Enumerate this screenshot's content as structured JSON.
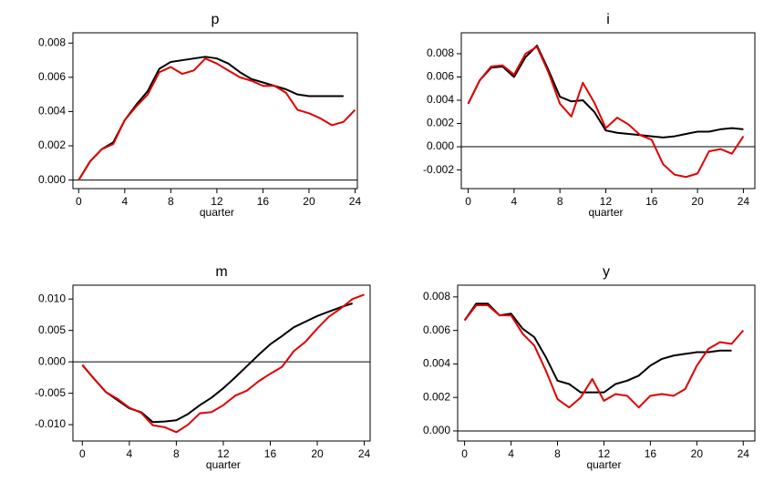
{
  "chart_data": [
    {
      "type": "line",
      "title": "p",
      "x_label": "quarter",
      "x": [
        0,
        1,
        2,
        3,
        4,
        5,
        6,
        7,
        8,
        9,
        10,
        11,
        12,
        13,
        14,
        15,
        16,
        17,
        18,
        19,
        20,
        21,
        22,
        23,
        24
      ],
      "series": [
        {
          "color": "#000000",
          "values": [
            0,
            0.0011,
            0.0018,
            0.0022,
            0.0035,
            0.0044,
            0.0052,
            0.0065,
            0.0069,
            0.007,
            0.0071,
            0.0072,
            0.0071,
            0.0068,
            0.0063,
            0.0059,
            0.0057,
            0.0055,
            0.0053,
            0.005,
            0.0049,
            0.0049,
            0.0049,
            0.0049,
            null
          ]
        },
        {
          "color": "#e00000",
          "values": [
            0,
            0.0011,
            0.0018,
            0.0021,
            0.0035,
            0.0043,
            0.005,
            0.0063,
            0.0066,
            0.0062,
            0.0064,
            0.0071,
            0.0068,
            0.0064,
            0.006,
            0.0058,
            0.0055,
            0.0055,
            0.0051,
            0.0041,
            0.0039,
            0.0036,
            0.0032,
            0.0034,
            0.0041
          ]
        }
      ],
      "xlim": [
        -0.5,
        24.2
      ],
      "xticks": [
        0,
        4,
        8,
        12,
        16,
        20,
        24
      ],
      "ylim": [
        -0.0005,
        0.0086
      ],
      "yticks": [
        {
          "value": 0,
          "label": "0.000"
        },
        {
          "value": 0.002,
          "label": "0.002"
        },
        {
          "value": 0.004,
          "label": "0.004"
        },
        {
          "value": 0.006,
          "label": "0.006"
        },
        {
          "value": 0.008,
          "label": "0.008"
        }
      ],
      "hline": 0
    },
    {
      "type": "line",
      "title": "i",
      "x_label": "quarter",
      "x": [
        0,
        1,
        2,
        3,
        4,
        5,
        6,
        7,
        8,
        9,
        10,
        11,
        12,
        13,
        14,
        15,
        16,
        17,
        18,
        19,
        20,
        21,
        22,
        23,
        24
      ],
      "series": [
        {
          "color": "#000000",
          "values": [
            0.0037,
            0.0057,
            0.0068,
            0.0069,
            0.006,
            0.0077,
            0.0087,
            0.0066,
            0.0043,
            0.0039,
            0.004,
            0.003,
            0.0014,
            0.0012,
            0.0011,
            0.001,
            0.0009,
            0.0008,
            0.0009,
            0.0011,
            0.0013,
            0.0013,
            0.0015,
            0.0016,
            0.0015
          ]
        },
        {
          "color": "#e00000",
          "values": [
            0.0037,
            0.0057,
            0.0069,
            0.007,
            0.0062,
            0.008,
            0.0086,
            0.0064,
            0.0037,
            0.0026,
            0.0055,
            0.0038,
            0.0016,
            0.0025,
            0.0019,
            0.001,
            0.0006,
            -0.0015,
            -0.0024,
            -0.0026,
            -0.0023,
            -0.0004,
            -0.0002,
            -0.0006,
            0.0009
          ]
        }
      ],
      "xlim": [
        -0.6,
        25
      ],
      "xticks": [
        0,
        4,
        8,
        12,
        16,
        20,
        24
      ],
      "ylim": [
        -0.0036,
        0.0098
      ],
      "yticks": [
        {
          "value": -0.002,
          "label": "-0.002"
        },
        {
          "value": 0,
          "label": "0.000"
        },
        {
          "value": 0.002,
          "label": "0.002"
        },
        {
          "value": 0.004,
          "label": "0.004"
        },
        {
          "value": 0.006,
          "label": "0.006"
        },
        {
          "value": 0.008,
          "label": "0.008"
        }
      ],
      "hline": 0
    },
    {
      "type": "line",
      "title": "m",
      "x_label": "quarter",
      "x": [
        0,
        1,
        2,
        3,
        4,
        5,
        6,
        7,
        8,
        9,
        10,
        11,
        12,
        13,
        14,
        15,
        16,
        17,
        18,
        19,
        20,
        21,
        22,
        23,
        24
      ],
      "series": [
        {
          "color": "#000000",
          "values": [
            -0.0005,
            -0.0027,
            -0.0048,
            -0.0061,
            -0.0074,
            -0.008,
            -0.0096,
            -0.0095,
            -0.0093,
            -0.0083,
            -0.0069,
            -0.0057,
            -0.0042,
            -0.0025,
            -0.0007,
            0.0011,
            0.0028,
            0.0041,
            0.0055,
            0.0064,
            0.0073,
            0.008,
            0.0087,
            0.0093,
            null
          ]
        },
        {
          "color": "#e00000",
          "values": [
            -0.0005,
            -0.0027,
            -0.0048,
            -0.0059,
            -0.0073,
            -0.0081,
            -0.0101,
            -0.0104,
            -0.0112,
            -0.01,
            -0.0082,
            -0.008,
            -0.0069,
            -0.0054,
            -0.0046,
            -0.0031,
            -0.0019,
            -0.0008,
            0.0017,
            0.0032,
            0.0053,
            0.0072,
            0.0085,
            0.01,
            0.0107
          ]
        }
      ],
      "xlim": [
        -0.8,
        24.5
      ],
      "xticks": [
        0,
        4,
        8,
        12,
        16,
        20,
        24
      ],
      "ylim": [
        -0.0126,
        0.0122
      ],
      "yticks": [
        {
          "value": -0.01,
          "label": "-0.010"
        },
        {
          "value": -0.005,
          "label": "-0.005"
        },
        {
          "value": 0,
          "label": "0.000"
        },
        {
          "value": 0.005,
          "label": "0.005"
        },
        {
          "value": 0.01,
          "label": "0.010"
        }
      ],
      "hline": 0
    },
    {
      "type": "line",
      "title": "y",
      "x_label": "quarter",
      "x": [
        0,
        1,
        2,
        3,
        4,
        5,
        6,
        7,
        8,
        9,
        10,
        11,
        12,
        13,
        14,
        15,
        16,
        17,
        18,
        19,
        20,
        21,
        22,
        23,
        24
      ],
      "series": [
        {
          "color": "#000000",
          "values": [
            0.0066,
            0.0076,
            0.0076,
            0.0069,
            0.007,
            0.0061,
            0.0056,
            0.0044,
            0.003,
            0.0028,
            0.0023,
            0.0023,
            0.0023,
            0.0028,
            0.003,
            0.0033,
            0.0039,
            0.0043,
            0.0045,
            0.0046,
            0.0047,
            0.0047,
            0.0048,
            0.0048,
            null
          ]
        },
        {
          "color": "#e00000",
          "values": [
            0.0066,
            0.0075,
            0.0075,
            0.0069,
            0.0069,
            0.0058,
            0.0051,
            0.0036,
            0.0019,
            0.0014,
            0.002,
            0.0031,
            0.0018,
            0.0022,
            0.0021,
            0.0014,
            0.0021,
            0.0022,
            0.0021,
            0.0025,
            0.0039,
            0.0049,
            0.0053,
            0.0052,
            0.006
          ]
        }
      ],
      "xlim": [
        -0.6,
        25
      ],
      "xticks": [
        0,
        4,
        8,
        12,
        16,
        20,
        24
      ],
      "ylim": [
        -0.0006,
        0.0087
      ],
      "yticks": [
        {
          "value": 0,
          "label": "0.000"
        },
        {
          "value": 0.002,
          "label": "0.002"
        },
        {
          "value": 0.004,
          "label": "0.004"
        },
        {
          "value": 0.006,
          "label": "0.006"
        },
        {
          "value": 0.008,
          "label": "0.008"
        }
      ],
      "hline": 0
    }
  ]
}
